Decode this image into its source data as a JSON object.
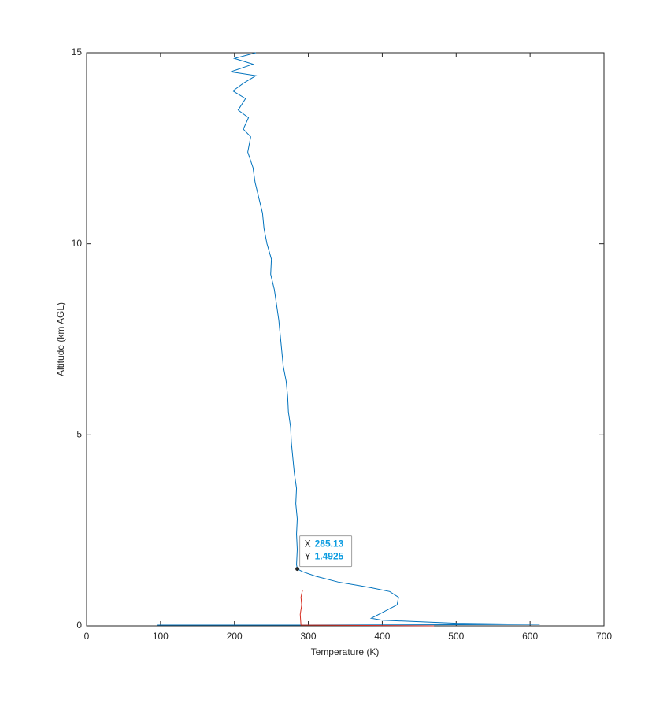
{
  "chart_data": {
    "type": "line",
    "x_label": "Temperature (K)",
    "y_label": "Altitude (km AGL)",
    "xlim": [
      0,
      700
    ],
    "xticks": [
      0,
      100,
      200,
      300,
      400,
      500,
      600,
      700
    ],
    "ylim": [
      0,
      15
    ],
    "yticks": [
      0,
      5,
      10,
      15
    ],
    "series": [
      {
        "color": "#0072bd",
        "x": [
          96,
          300,
          500,
          613,
          500,
          400,
          385,
          400,
          420,
          422,
          410,
          385,
          370,
          340,
          310,
          292,
          285.13,
          284,
          285,
          284,
          285,
          283,
          284,
          281,
          279,
          277,
          276,
          273,
          272,
          270,
          266,
          264,
          262,
          260,
          257,
          254,
          249,
          250,
          244,
          240,
          238,
          233,
          228,
          225,
          218,
          222,
          212,
          219,
          205,
          215,
          198,
          212,
          229,
          195,
          225,
          200,
          229
        ],
        "values": [
          0.02,
          0.02,
          0.03,
          0.04,
          0.07,
          0.15,
          0.2,
          0.35,
          0.55,
          0.75,
          0.9,
          1.0,
          1.05,
          1.15,
          1.3,
          1.42,
          1.4925,
          1.6,
          2.0,
          2.4,
          2.8,
          3.2,
          3.6,
          4.0,
          4.4,
          4.8,
          5.2,
          5.6,
          6.0,
          6.4,
          6.8,
          7.2,
          7.6,
          8.0,
          8.4,
          8.8,
          9.2,
          9.6,
          10.0,
          10.4,
          10.8,
          11.2,
          11.6,
          12.0,
          12.4,
          12.8,
          13.0,
          13.3,
          13.5,
          13.8,
          14.0,
          14.2,
          14.4,
          14.5,
          14.7,
          14.85,
          15.0
        ]
      },
      {
        "color": "#d62d20",
        "x": [
          470,
          380,
          290,
          289,
          291,
          290,
          292
        ],
        "values": [
          0.0,
          0.01,
          0.02,
          0.3,
          0.55,
          0.75,
          0.93
        ]
      }
    ],
    "datatip": {
      "x_label": "X",
      "y_label": "Y",
      "x": 285.13,
      "y": 1.4925
    }
  }
}
